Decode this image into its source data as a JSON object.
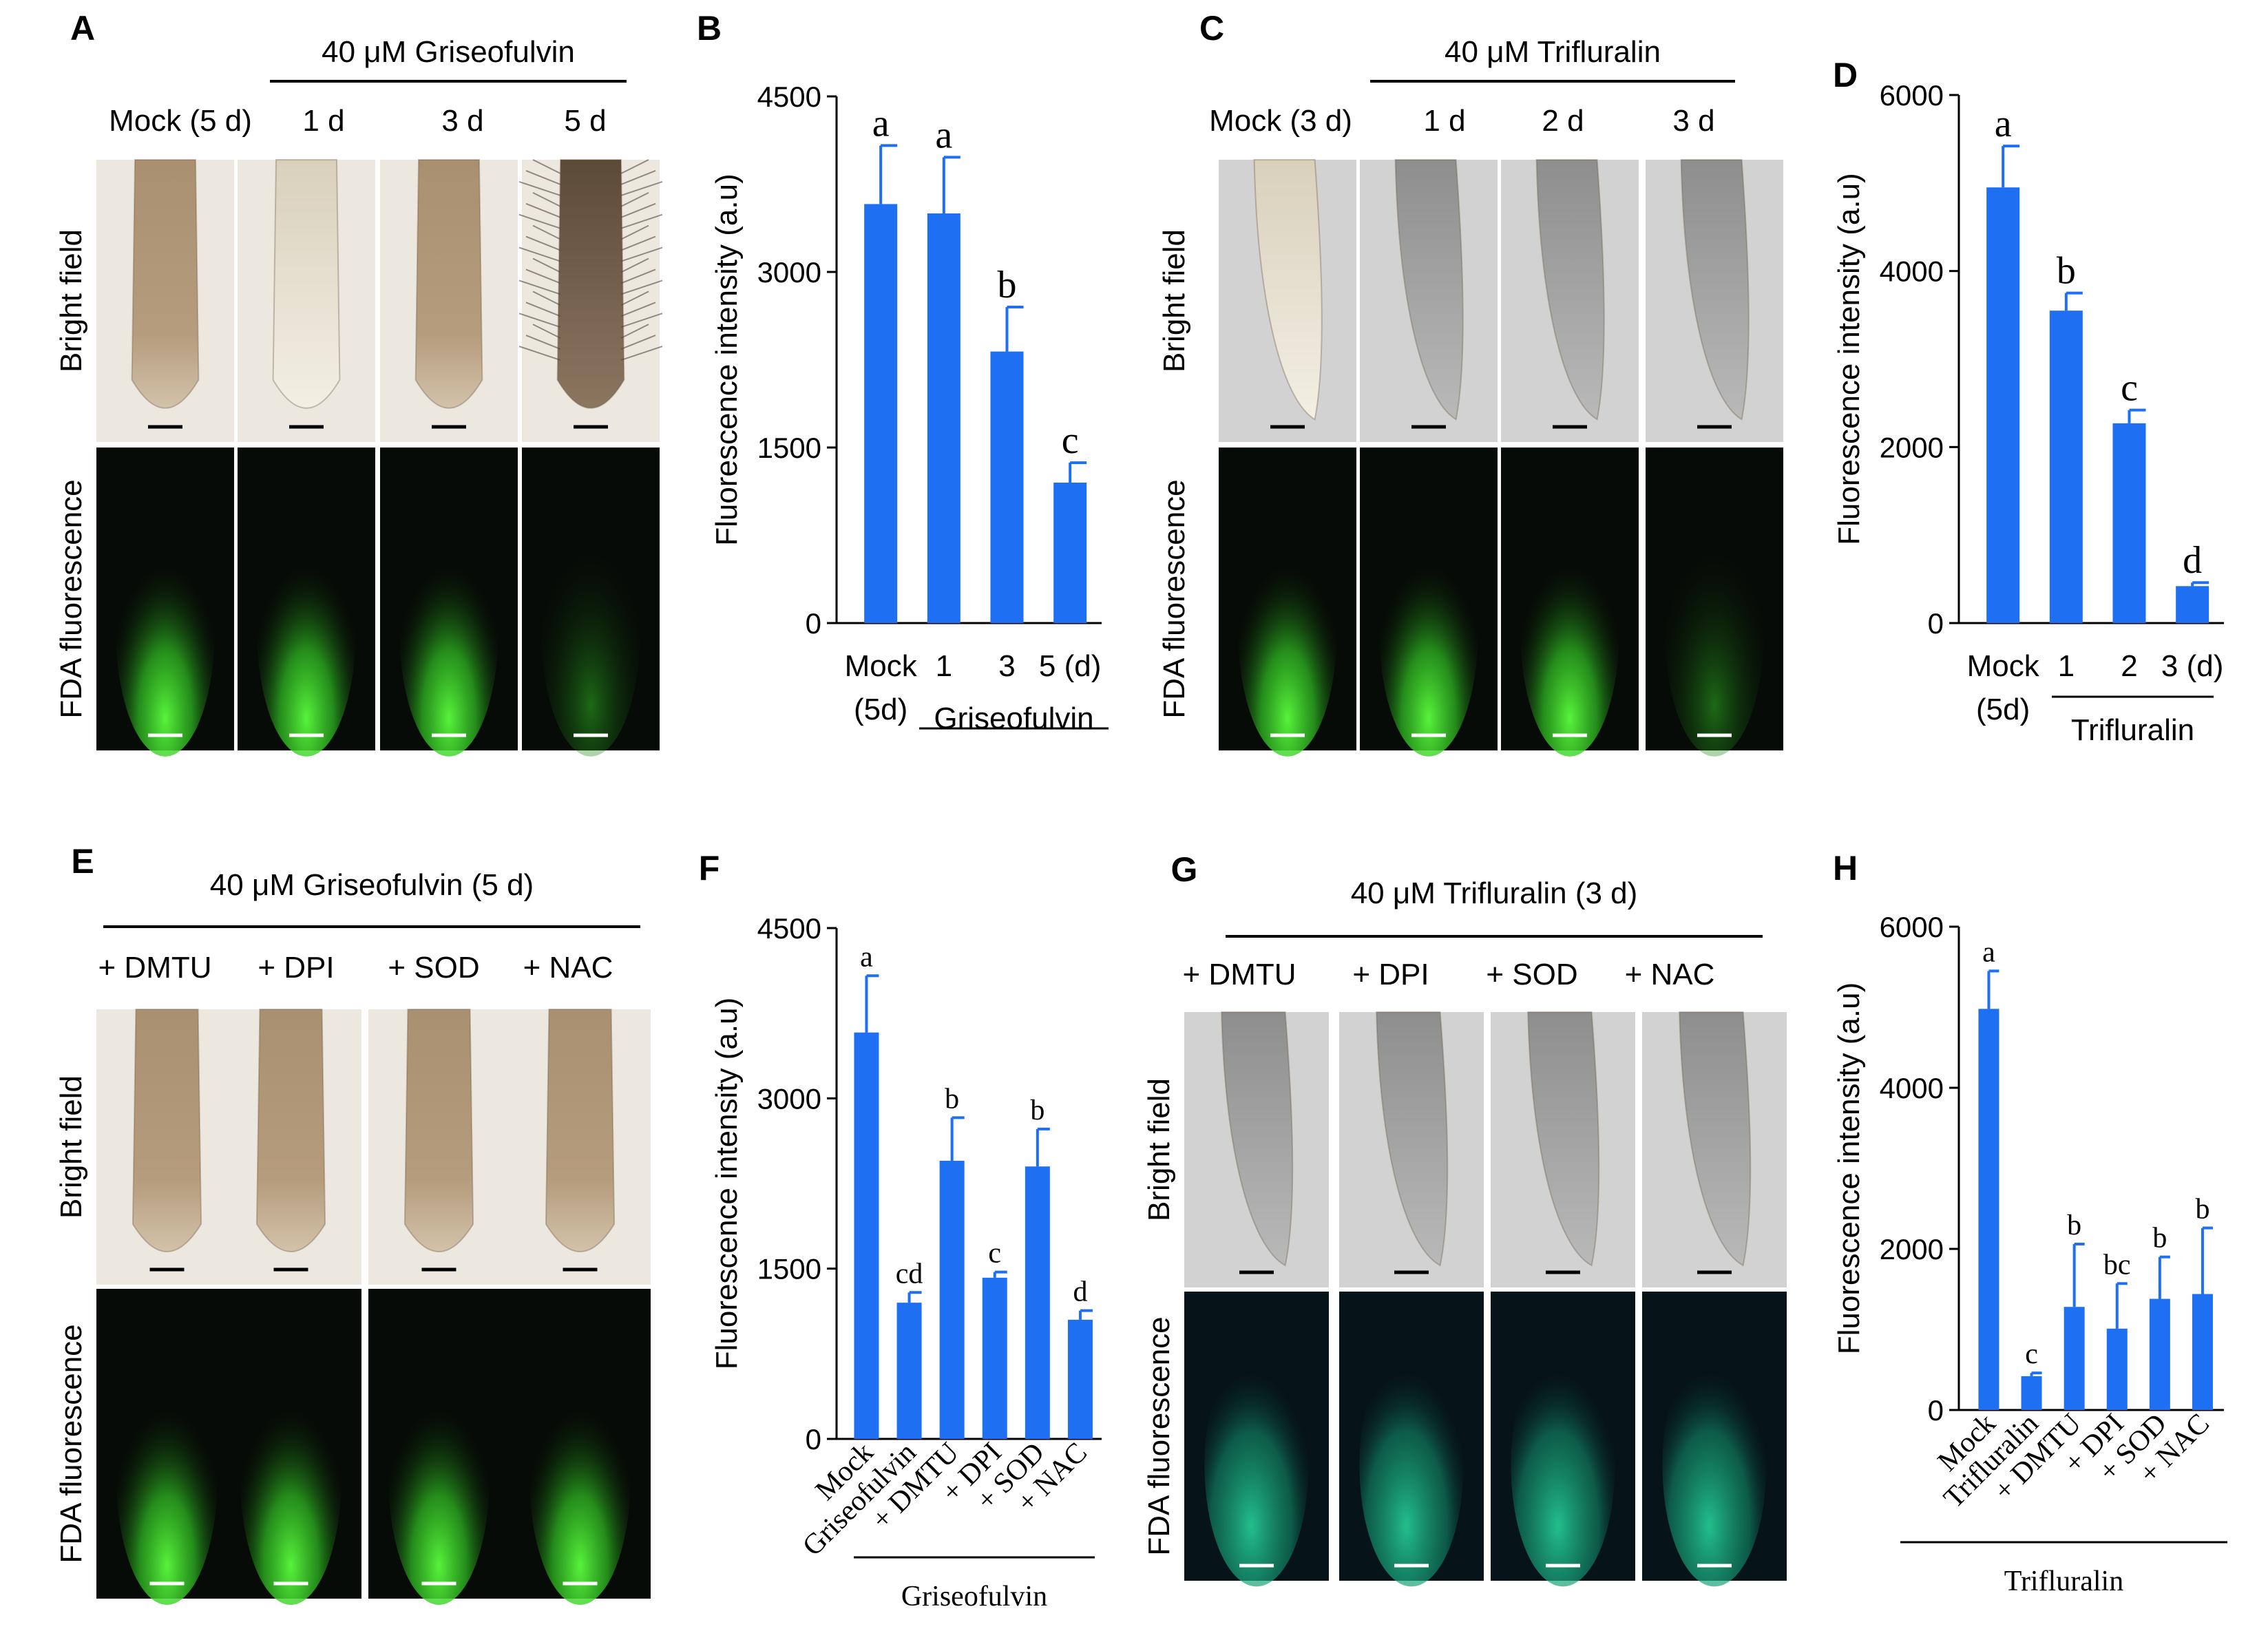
{
  "colors": {
    "bar": "#1f6ff2",
    "axis": "#000000",
    "bright_field_light": "#e4ddd3",
    "bright_field_dark": "#9a8468",
    "bright_field_gray": "#c9c9c9",
    "fluor_bg": "#070b07",
    "fluor_green": "#3ddc2e",
    "fluor_teal": "#1fb58a"
  },
  "panels": {
    "A": {
      "letter": "A",
      "treatment": "40 μM Griseofulvin",
      "columns": [
        "Mock (5 d)",
        "1 d",
        "3 d",
        "5 d"
      ],
      "row_labels": [
        "Bright field",
        "FDA fluorescence"
      ]
    },
    "C": {
      "letter": "C",
      "treatment": "40 μM Trifluralin",
      "columns": [
        "Mock (3 d)",
        "1 d",
        "2 d",
        "3 d"
      ],
      "row_labels": [
        "Bright field",
        "FDA fluorescence"
      ]
    },
    "E": {
      "letter": "E",
      "treatment": "40 μM Griseofulvin (5 d)",
      "columns": [
        "+ DMTU",
        "+ DPI",
        "+ SOD",
        "+ NAC"
      ],
      "row_labels": [
        "Bright field",
        "FDA fluorescence"
      ]
    },
    "G": {
      "letter": "G",
      "treatment": "40 μM Trifluralin (3 d)",
      "columns": [
        "+ DMTU",
        "+ DPI",
        "+ SOD",
        "+ NAC"
      ],
      "row_labels": [
        "Bright field",
        "FDA fluorescence"
      ]
    }
  },
  "chart_data": [
    {
      "panel": "B",
      "type": "bar",
      "ylabel": "Fluorescence intensity (a.u)",
      "ylim": [
        0,
        4500
      ],
      "yticks": [
        0,
        1500,
        3000,
        4500
      ],
      "categories": [
        "Mock",
        "1",
        "3",
        "5 (d)"
      ],
      "extra_x_text": "(5d)",
      "group_label": "Griseofulvin",
      "values": [
        3580,
        3500,
        2320,
        1200
      ],
      "errors": [
        500,
        480,
        380,
        170
      ],
      "letters": [
        "a",
        "a",
        "b",
        "c"
      ]
    },
    {
      "panel": "D",
      "type": "bar",
      "ylabel": "Fluorescence intensity (a.u)",
      "ylim": [
        0,
        6000
      ],
      "yticks": [
        0,
        2000,
        4000,
        6000
      ],
      "categories": [
        "Mock",
        "1",
        "2",
        "3 (d)"
      ],
      "extra_x_text": "(5d)",
      "group_label": "Trifluralin",
      "values": [
        4950,
        3550,
        2270,
        420
      ],
      "errors": [
        470,
        200,
        150,
        40
      ],
      "letters": [
        "a",
        "b",
        "c",
        "d"
      ]
    },
    {
      "panel": "F",
      "type": "bar",
      "ylabel": "Fluorescence intensity (a.u)",
      "ylim": [
        0,
        4500
      ],
      "yticks": [
        0,
        1500,
        3000,
        4500
      ],
      "categories": [
        "Mock",
        "Griseofulvin",
        "+ DMTU",
        "+ DPI",
        "+ SOD",
        "+ NAC"
      ],
      "group_label": "Griseofulvin",
      "values": [
        3580,
        1200,
        2450,
        1420,
        2400,
        1050
      ],
      "errors": [
        500,
        90,
        380,
        50,
        330,
        80
      ],
      "letters": [
        "a",
        "cd",
        "b",
        "c",
        "b",
        "d"
      ]
    },
    {
      "panel": "H",
      "type": "bar",
      "ylabel": "Fluorescence intensity (a.u)",
      "ylim": [
        0,
        6000
      ],
      "yticks": [
        0,
        2000,
        4000,
        6000
      ],
      "categories": [
        "Mock",
        "Trifluralin",
        "+ DMTU",
        "+ DPI",
        "+ SOD",
        "+ NAC"
      ],
      "group_label": "Trifluralin",
      "values": [
        4980,
        420,
        1280,
        1010,
        1380,
        1440
      ],
      "errors": [
        470,
        40,
        780,
        560,
        520,
        820
      ],
      "letters": [
        "a",
        "c",
        "b",
        "bc",
        "b",
        "b"
      ]
    }
  ],
  "chart_letters": {
    "B": "B",
    "D": "D",
    "F": "F",
    "H": "H"
  }
}
